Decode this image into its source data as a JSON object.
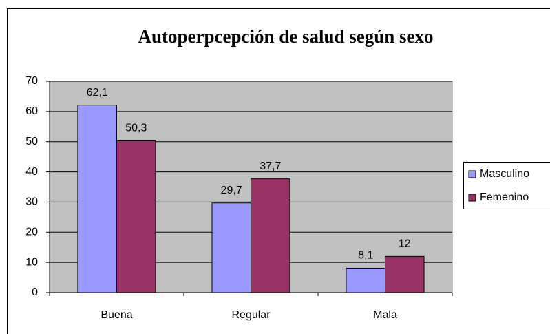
{
  "chart_data": {
    "type": "bar",
    "title": "Autoperpcepción de salud según sexo",
    "categories": [
      "Buena",
      "Regular",
      "Mala"
    ],
    "series": [
      {
        "name": "Masculino",
        "color": "#9999ff",
        "values": [
          62.1,
          29.7,
          8.1
        ],
        "value_labels": [
          "62,1",
          "29,7",
          "8,1"
        ]
      },
      {
        "name": "Femenino",
        "color": "#993366",
        "values": [
          50.3,
          37.7,
          12
        ],
        "value_labels": [
          "50,3",
          "37,7",
          "12"
        ]
      }
    ],
    "ylim": [
      0,
      70
    ],
    "yticks": [
      0,
      10,
      20,
      30,
      40,
      50,
      60,
      70
    ],
    "grid": true,
    "legend": "right"
  }
}
